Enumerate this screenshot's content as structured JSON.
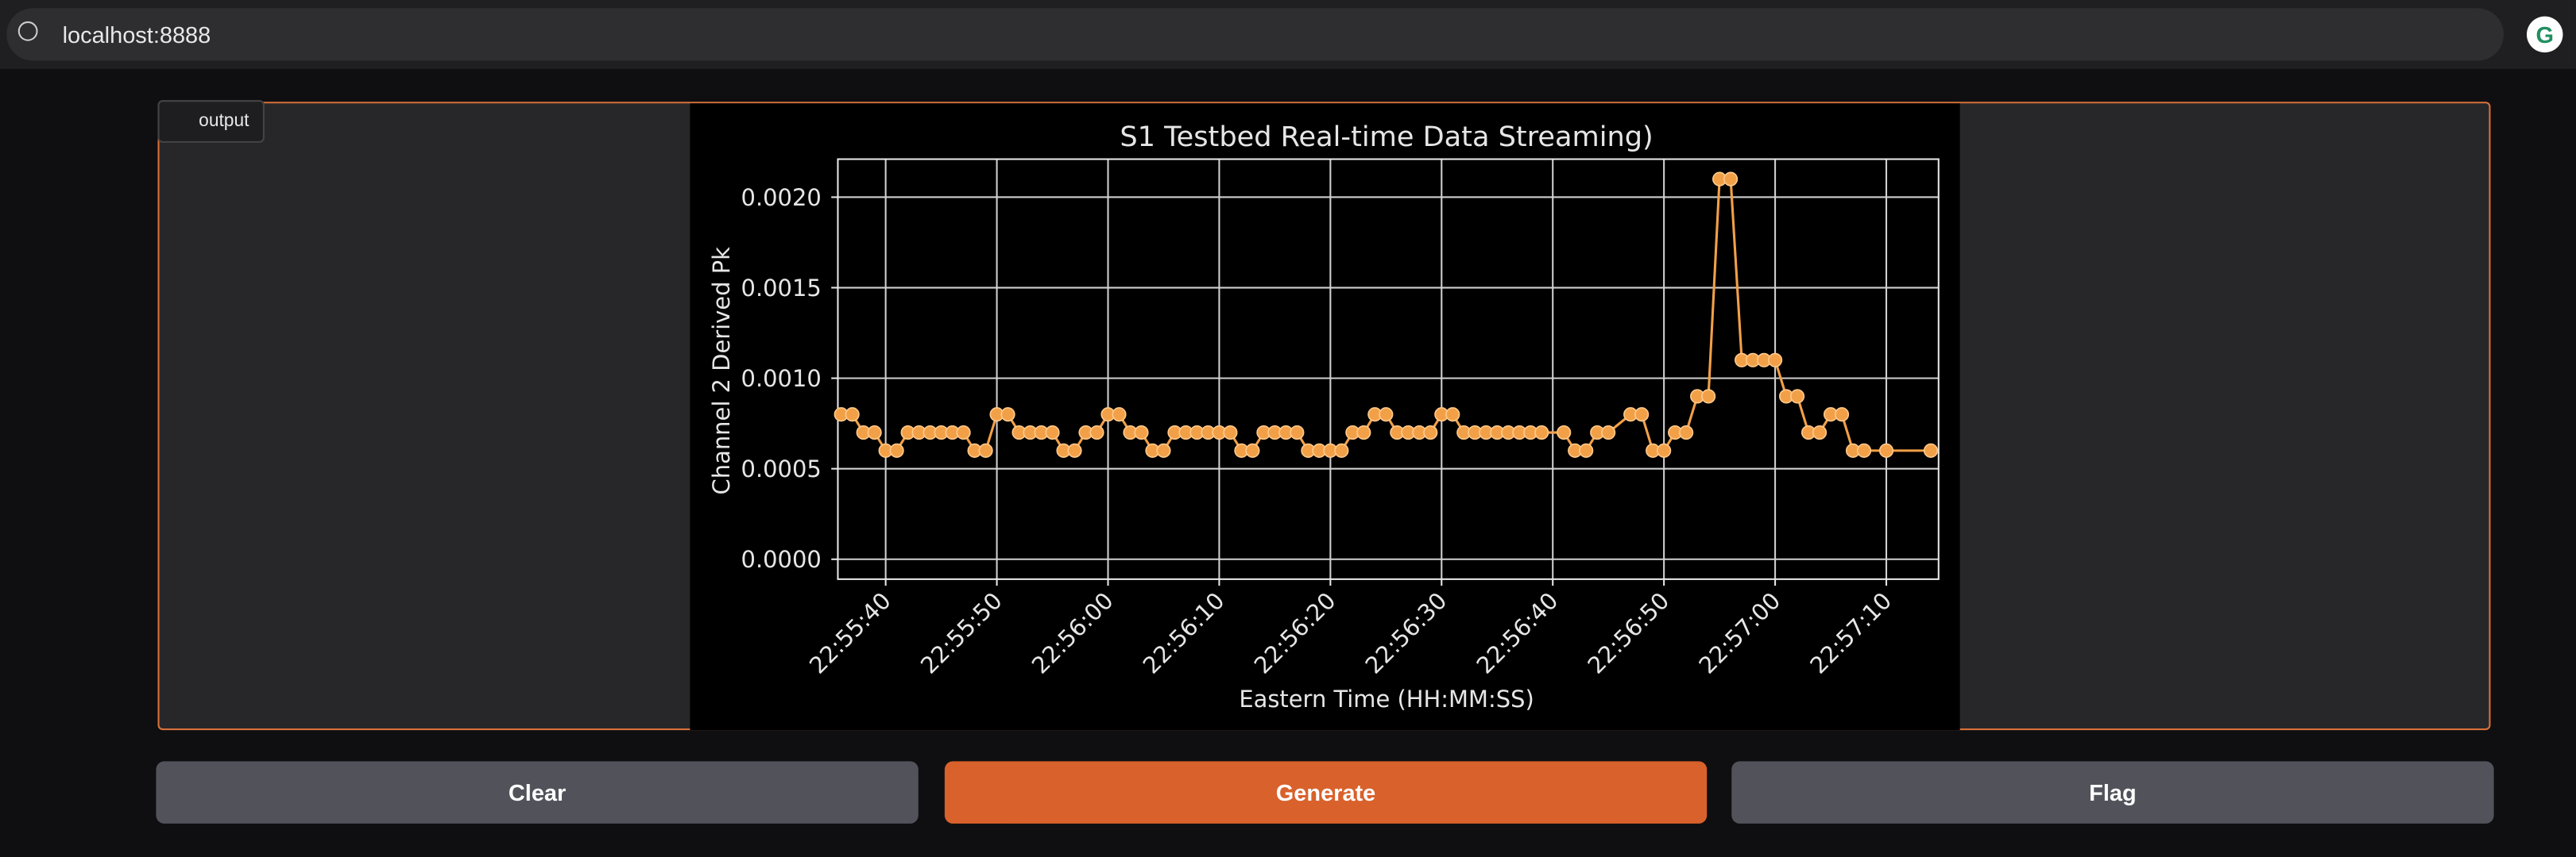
{
  "browser": {
    "url": "localhost:8888"
  },
  "output_label": "output",
  "chart_data": {
    "type": "line",
    "title": "S1 Testbed Real-time Data Streaming)",
    "x_label": "Eastern Time (HH:MM:SS)",
    "y_label": "Channel 2 Derived Pk",
    "color": "#f2a048",
    "grid": true,
    "x": [
      "22:55:36",
      "22:55:37",
      "22:55:38",
      "22:55:39",
      "22:55:40",
      "22:55:41",
      "22:55:42",
      "22:55:43",
      "22:55:44",
      "22:55:45",
      "22:55:46",
      "22:55:47",
      "22:55:48",
      "22:55:49",
      "22:55:50",
      "22:55:51",
      "22:55:52",
      "22:55:53",
      "22:55:54",
      "22:55:55",
      "22:55:56",
      "22:55:57",
      "22:55:58",
      "22:55:59",
      "22:56:00",
      "22:56:01",
      "22:56:02",
      "22:56:03",
      "22:56:04",
      "22:56:05",
      "22:56:06",
      "22:56:07",
      "22:56:08",
      "22:56:09",
      "22:56:10",
      "22:56:11",
      "22:56:12",
      "22:56:13",
      "22:56:14",
      "22:56:15",
      "22:56:16",
      "22:56:17",
      "22:56:18",
      "22:56:19",
      "22:56:20",
      "22:56:21",
      "22:56:22",
      "22:56:23",
      "22:56:24",
      "22:56:25",
      "22:56:26",
      "22:56:27",
      "22:56:28",
      "22:56:29",
      "22:56:30",
      "22:56:31",
      "22:56:32",
      "22:56:33",
      "22:56:34",
      "22:56:35",
      "22:56:36",
      "22:56:37",
      "22:56:38",
      "22:56:39",
      "22:56:41",
      "22:56:42",
      "22:56:43",
      "22:56:44",
      "22:56:45",
      "22:56:47",
      "22:56:48",
      "22:56:49",
      "22:56:50",
      "22:56:51",
      "22:56:52",
      "22:56:53",
      "22:56:54",
      "22:56:55",
      "22:56:56",
      "22:56:57",
      "22:56:58",
      "22:56:59",
      "22:57:00",
      "22:57:01",
      "22:57:02",
      "22:57:03",
      "22:57:04",
      "22:57:05",
      "22:57:06",
      "22:57:07",
      "22:57:08",
      "22:57:10",
      "22:57:14"
    ],
    "values": [
      0.0008,
      0.0008,
      0.0007,
      0.0007,
      0.0006,
      0.0006,
      0.0007,
      0.0007,
      0.0007,
      0.0007,
      0.0007,
      0.0007,
      0.0006,
      0.0006,
      0.0008,
      0.0008,
      0.0007,
      0.0007,
      0.0007,
      0.0007,
      0.0006,
      0.0006,
      0.0007,
      0.0007,
      0.0008,
      0.0008,
      0.0007,
      0.0007,
      0.0006,
      0.0006,
      0.0007,
      0.0007,
      0.0007,
      0.0007,
      0.0007,
      0.0007,
      0.0006,
      0.0006,
      0.0007,
      0.0007,
      0.0007,
      0.0007,
      0.0006,
      0.0006,
      0.0006,
      0.0006,
      0.0007,
      0.0007,
      0.0008,
      0.0008,
      0.0007,
      0.0007,
      0.0007,
      0.0007,
      0.0008,
      0.0008,
      0.0007,
      0.0007,
      0.0007,
      0.0007,
      0.0007,
      0.0007,
      0.0007,
      0.0007,
      0.0007,
      0.0006,
      0.0006,
      0.0007,
      0.0007,
      0.0008,
      0.0008,
      0.0006,
      0.0006,
      0.0007,
      0.0007,
      0.0009,
      0.0009,
      0.0021,
      0.0021,
      0.0011,
      0.0011,
      0.0011,
      0.0011,
      0.0009,
      0.0009,
      0.0007,
      0.0007,
      0.0008,
      0.0008,
      0.0006,
      0.0006,
      0.0006,
      0.0006
    ],
    "xlim": [
      "22:55:35.7",
      "22:57:14.7"
    ],
    "xticks": [
      "22:55:40",
      "22:55:50",
      "22:56:00",
      "22:56:10",
      "22:56:20",
      "22:56:30",
      "22:56:40",
      "22:56:50",
      "22:57:00",
      "22:57:10"
    ],
    "ylim": [
      -0.00011,
      0.00221
    ],
    "yticks": [
      {
        "value": 0,
        "label": "0.0000"
      },
      {
        "value": 0.0005,
        "label": "0.0005"
      },
      {
        "value": 0.001,
        "label": "0.0010"
      },
      {
        "value": 0.0015,
        "label": "0.0015"
      },
      {
        "value": 0.002,
        "label": "0.0020"
      }
    ]
  },
  "buttons": [
    "Clear",
    "Generate",
    "Flag"
  ]
}
